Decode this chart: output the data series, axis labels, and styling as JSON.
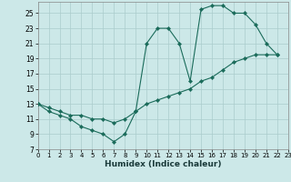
{
  "xlabel": "Humidex (Indice chaleur)",
  "bg_color": "#cce8e8",
  "grid_color": "#aacccc",
  "line_color": "#1a6b5a",
  "line1_x": [
    0,
    1,
    2,
    3,
    4,
    5,
    6,
    7,
    8,
    9,
    10,
    11,
    12,
    13,
    14,
    15,
    16,
    17,
    18,
    19,
    20,
    21,
    22
  ],
  "line1_y": [
    13,
    12,
    11.5,
    11,
    10,
    9.5,
    9,
    8,
    9,
    12,
    21,
    23,
    23,
    21,
    16,
    25.5,
    26,
    26,
    25,
    25,
    23.5,
    21,
    19.5
  ],
  "line2_x": [
    0,
    1,
    2,
    3,
    4,
    5,
    6,
    7,
    8,
    9,
    10,
    11,
    12,
    13,
    14,
    15,
    16,
    17,
    18,
    19,
    20,
    21,
    22
  ],
  "line2_y": [
    13,
    12.5,
    12,
    11.5,
    11.5,
    11,
    11,
    10.5,
    11,
    12,
    13,
    13.5,
    14,
    14.5,
    15,
    16,
    16.5,
    17.5,
    18.5,
    19,
    19.5,
    19.5,
    19.5
  ],
  "xlim": [
    0,
    23
  ],
  "ylim": [
    7,
    26.5
  ],
  "xticks": [
    0,
    1,
    2,
    3,
    4,
    5,
    6,
    7,
    8,
    9,
    10,
    11,
    12,
    13,
    14,
    15,
    16,
    17,
    18,
    19,
    20,
    21,
    22,
    23
  ],
  "yticks": [
    7,
    9,
    11,
    13,
    15,
    17,
    19,
    21,
    23,
    25
  ]
}
